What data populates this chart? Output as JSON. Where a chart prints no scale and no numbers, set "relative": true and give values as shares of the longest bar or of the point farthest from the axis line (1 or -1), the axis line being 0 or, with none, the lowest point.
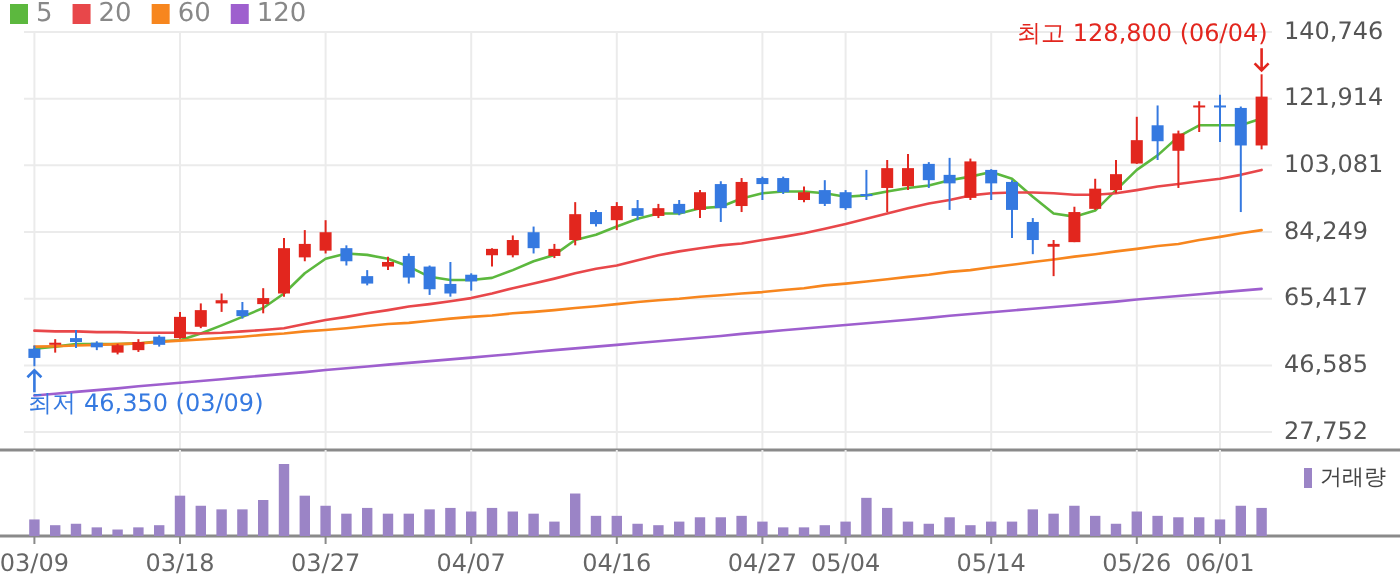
{
  "chart_data": [
    {
      "type": "candlestick",
      "categories": [
        "03/09",
        null,
        null,
        null,
        null,
        null,
        null,
        "03/18",
        null,
        null,
        null,
        null,
        null,
        null,
        "03/27",
        null,
        null,
        null,
        null,
        null,
        null,
        "04/07",
        null,
        null,
        null,
        null,
        null,
        null,
        "04/16",
        null,
        null,
        null,
        null,
        null,
        null,
        "04/27",
        null,
        null,
        null,
        "05/04",
        null,
        null,
        null,
        null,
        null,
        null,
        "05/14",
        null,
        null,
        null,
        null,
        null,
        null,
        "05/26",
        null,
        null,
        null,
        "06/01",
        null,
        null
      ],
      "ohlc": [
        [
          51300,
          52200,
          46350,
          48700
        ],
        [
          52400,
          54000,
          50200,
          53000
        ],
        [
          54300,
          56600,
          51500,
          53200
        ],
        [
          53000,
          53400,
          50900,
          51700
        ],
        [
          50200,
          52700,
          49700,
          52300
        ],
        [
          50900,
          54000,
          50400,
          53200
        ],
        [
          54700,
          55100,
          51900,
          52400
        ],
        [
          54300,
          61700,
          54100,
          60300
        ],
        [
          57500,
          64100,
          57100,
          62200
        ],
        [
          64100,
          66900,
          61700,
          65000
        ],
        [
          62200,
          64500,
          59800,
          60500
        ],
        [
          63900,
          68400,
          61300,
          65600
        ],
        [
          66900,
          82600,
          66000,
          79700
        ],
        [
          77100,
          84800,
          76000,
          80900
        ],
        [
          79000,
          87600,
          78200,
          84200
        ],
        [
          79700,
          80500,
          74800,
          76000
        ],
        [
          71800,
          73500,
          69200,
          69700
        ],
        [
          74500,
          77300,
          73500,
          75800
        ],
        [
          77500,
          78200,
          69700,
          71400
        ],
        [
          74500,
          74800,
          66500,
          68100
        ],
        [
          69600,
          75800,
          66000,
          66900
        ],
        [
          72200,
          72600,
          67700,
          70300
        ],
        [
          77700,
          79700,
          74500,
          79500
        ],
        [
          77700,
          83300,
          77100,
          82000
        ],
        [
          84200,
          85800,
          78200,
          79700
        ],
        [
          77500,
          80900,
          76900,
          79500
        ],
        [
          82000,
          92700,
          80500,
          89300
        ],
        [
          89900,
          90500,
          85800,
          86500
        ],
        [
          87600,
          92700,
          84800,
          91600
        ],
        [
          91000,
          93300,
          87600,
          88800
        ],
        [
          88800,
          92200,
          88200,
          91000
        ],
        [
          92200,
          93300,
          89000,
          89500
        ],
        [
          90500,
          96100,
          88200,
          95500
        ],
        [
          97800,
          98600,
          87100,
          91000
        ],
        [
          91600,
          99500,
          89900,
          98400
        ],
        [
          99500,
          99900,
          93300,
          97800
        ],
        [
          99500,
          99900,
          95000,
          95500
        ],
        [
          93300,
          97100,
          92700,
          95500
        ],
        [
          96100,
          98900,
          91600,
          92200
        ],
        [
          95500,
          96100,
          90500,
          91000
        ],
        [
          95000,
          101800,
          93300,
          94400
        ],
        [
          96700,
          104600,
          89900,
          102300
        ],
        [
          97200,
          106300,
          96100,
          102300
        ],
        [
          103500,
          104000,
          96700,
          98900
        ],
        [
          100400,
          105200,
          90500,
          98000
        ],
        [
          93900,
          105000,
          93300,
          104200
        ],
        [
          101800,
          102000,
          93300,
          98000
        ],
        [
          98400,
          98900,
          82600,
          90500
        ],
        [
          87100,
          88200,
          78000,
          82000
        ],
        [
          80100,
          82000,
          71800,
          80900
        ],
        [
          81400,
          91400,
          81400,
          89900
        ],
        [
          90800,
          99300,
          90500,
          96500
        ],
        [
          96100,
          104600,
          95200,
          100600
        ],
        [
          103600,
          116800,
          103500,
          110200
        ],
        [
          114400,
          120000,
          104600,
          109900
        ],
        [
          107200,
          112900,
          96700,
          112100
        ],
        [
          119700,
          121200,
          112500,
          120000
        ],
        [
          120000,
          123000,
          109700,
          119700
        ],
        [
          119300,
          119700,
          89900,
          108700
        ],
        [
          108700,
          128800,
          107600,
          122500
        ]
      ],
      "series": [
        {
          "name": "5",
          "color": "#5cb83e",
          "type": "line",
          "values": [
            51300,
            51900,
            52600,
            52600,
            52600,
            52800,
            53400,
            53700,
            55600,
            57900,
            60300,
            62800,
            66900,
            72600,
            76700,
            78200,
            77800,
            76700,
            74500,
            71600,
            70700,
            70700,
            71300,
            73500,
            76000,
            77800,
            82000,
            83500,
            85800,
            88000,
            89500,
            89500,
            91000,
            91400,
            93700,
            95200,
            95700,
            95700,
            95200,
            94200,
            94600,
            95700,
            96700,
            97400,
            98900,
            99900,
            101200,
            99300,
            94200,
            89500,
            88600,
            90300,
            96100,
            101800,
            105900,
            111200,
            114400,
            114400,
            114400,
            116300
          ]
        },
        {
          "name": "20",
          "color": "#e8474a",
          "type": "line",
          "values": [
            56400,
            56200,
            56200,
            56000,
            56000,
            55800,
            55800,
            55800,
            55600,
            55800,
            56200,
            56600,
            57100,
            58300,
            59400,
            60300,
            61300,
            62200,
            63200,
            63900,
            64700,
            65600,
            66900,
            68400,
            69700,
            71100,
            72600,
            73900,
            74800,
            76300,
            77700,
            78800,
            79700,
            80500,
            81000,
            82000,
            82900,
            83900,
            85200,
            86500,
            88000,
            89500,
            91000,
            92300,
            93300,
            94600,
            95200,
            95400,
            95400,
            95200,
            94800,
            94800,
            95200,
            96100,
            97100,
            97800,
            98600,
            99300,
            100400,
            101800
          ]
        },
        {
          "name": "60",
          "color": "#f7861e",
          "type": "line",
          "values": [
            51900,
            52000,
            52200,
            52400,
            52600,
            52800,
            53200,
            53600,
            53900,
            54300,
            54700,
            55200,
            55600,
            56200,
            56600,
            57100,
            57700,
            58300,
            58600,
            59200,
            59800,
            60300,
            60700,
            61300,
            61700,
            62200,
            62800,
            63300,
            63900,
            64500,
            65000,
            65400,
            66000,
            66400,
            66900,
            67300,
            67900,
            68400,
            69200,
            69700,
            70300,
            70900,
            71600,
            72200,
            73000,
            73500,
            74300,
            75000,
            75800,
            76500,
            77300,
            78000,
            78800,
            79500,
            80300,
            80900,
            82000,
            82900,
            83900,
            84800
          ]
        },
        {
          "name": "120",
          "color": "#9e5fce",
          "type": "line",
          "values": [
            38100,
            38600,
            39100,
            39600,
            40100,
            40700,
            41200,
            41700,
            42200,
            42700,
            43200,
            43700,
            44200,
            44700,
            45300,
            45800,
            46300,
            46800,
            47300,
            47800,
            48300,
            48800,
            49300,
            49800,
            50400,
            50900,
            51400,
            51900,
            52400,
            52900,
            53400,
            53900,
            54400,
            54900,
            55500,
            56000,
            56500,
            57000,
            57500,
            58000,
            58500,
            59000,
            59500,
            60000,
            60600,
            61100,
            61600,
            62100,
            62600,
            63100,
            63600,
            64100,
            64600,
            65200,
            65700,
            66200,
            66700,
            67200,
            67700,
            68200
          ]
        }
      ],
      "ylim": [
        22700,
        140746
      ],
      "yticks": [
        {
          "value": 27752,
          "label": "27,752"
        },
        {
          "value": 46585,
          "label": "46,585"
        },
        {
          "value": 65417,
          "label": "65,417"
        },
        {
          "value": 84249,
          "label": "84,249"
        },
        {
          "value": 103081,
          "label": "103,081"
        },
        {
          "value": 121914,
          "label": "121,914"
        },
        {
          "value": 140746,
          "label": "140,746"
        }
      ],
      "grid": true,
      "legend": "top left",
      "tick_labels": "y",
      "annotations": [
        "최고 128,800 (06/04)",
        {
          "text": "최저 46,350 (03/09)",
          "x": "03/09",
          "y": 46350
        }
      ]
    },
    {
      "type": "bar",
      "relative": true,
      "categories": [
        "03/09",
        null,
        null,
        null,
        null,
        null,
        null,
        "03/18",
        null,
        null,
        null,
        null,
        null,
        null,
        "03/27",
        null,
        null,
        null,
        null,
        null,
        null,
        "04/07",
        null,
        null,
        null,
        null,
        null,
        null,
        "04/16",
        null,
        null,
        null,
        null,
        null,
        null,
        "04/27",
        null,
        null,
        null,
        "05/04",
        null,
        null,
        null,
        null,
        null,
        null,
        "05/14",
        null,
        null,
        null,
        null,
        null,
        null,
        "05/26",
        null,
        null,
        null,
        "06/01",
        null,
        null
      ],
      "series": [
        {
          "name": "거래량",
          "color": "#9b84c6",
          "values": [
            0.23,
            0.15,
            0.17,
            0.12,
            0.09,
            0.12,
            0.15,
            0.56,
            0.42,
            0.37,
            0.37,
            0.5,
            1,
            0.56,
            0.42,
            0.31,
            0.39,
            0.31,
            0.31,
            0.37,
            0.39,
            0.34,
            0.39,
            0.34,
            0.31,
            0.2,
            0.59,
            0.28,
            0.28,
            0.17,
            0.15,
            0.2,
            0.26,
            0.26,
            0.28,
            0.2,
            0.12,
            0.12,
            0.15,
            0.2,
            0.53,
            0.39,
            0.2,
            0.17,
            0.26,
            0.15,
            0.2,
            0.2,
            0.37,
            0.31,
            0.42,
            0.28,
            0.17,
            0.34,
            0.28,
            0.26,
            0.26,
            0.23,
            0.42,
            0.39
          ]
        }
      ],
      "grid": "x",
      "legend": "top right",
      "tick_labels": "x"
    }
  ]
}
